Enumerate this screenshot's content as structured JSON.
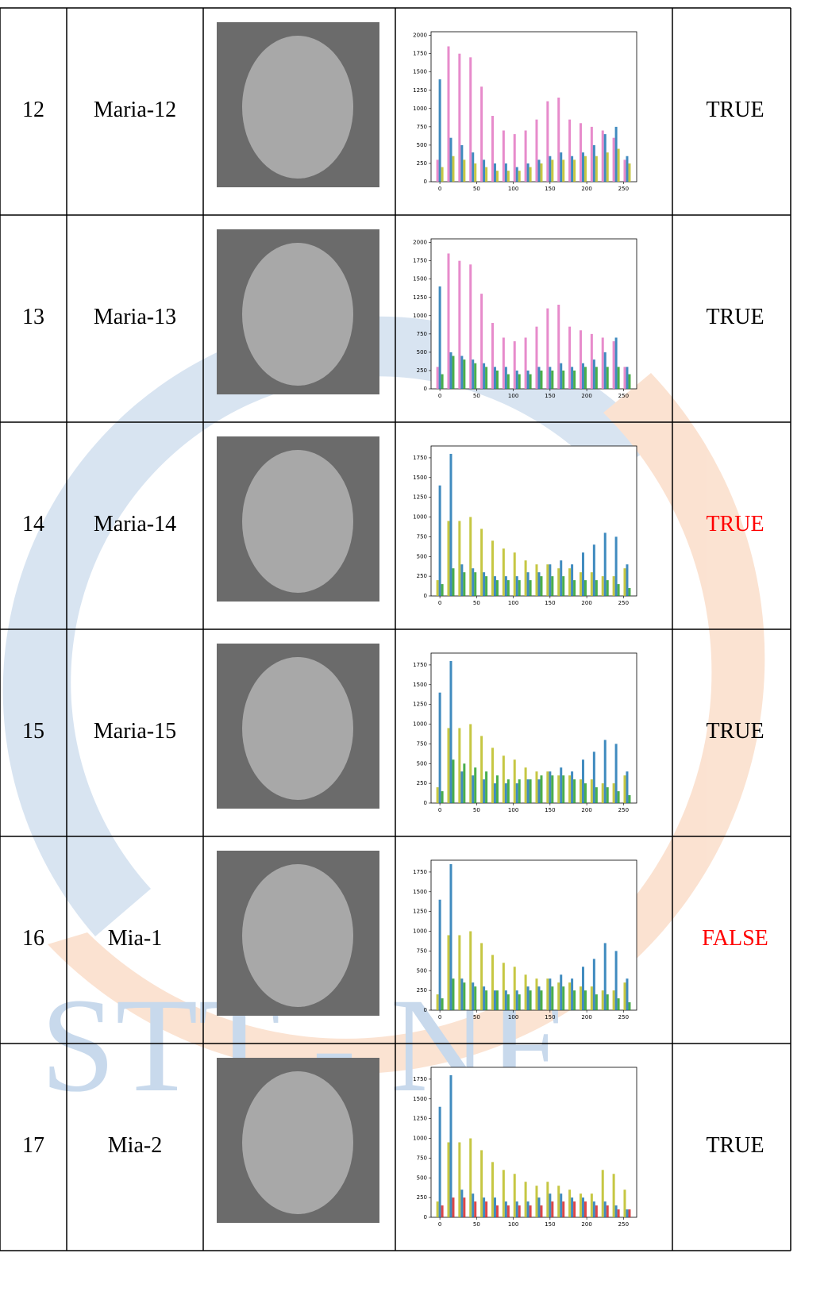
{
  "watermark": "STT - NF",
  "rows": [
    {
      "no": 12,
      "name": "Maria-12",
      "result": "TRUE",
      "result_color": "#000000",
      "histogram": {
        "type": "bar",
        "x": [
          0,
          15,
          30,
          45,
          60,
          75,
          90,
          105,
          120,
          135,
          150,
          165,
          180,
          195,
          210,
          225,
          240,
          255
        ],
        "xlim": [
          -12,
          268
        ],
        "xticks": [
          0,
          50,
          100,
          150,
          200,
          250
        ],
        "ylim": [
          0,
          2050
        ],
        "yticks": [
          0,
          250,
          500,
          750,
          1000,
          1250,
          1500,
          1750,
          2000
        ],
        "series": [
          {
            "color": "#e377c2",
            "values": [
              300,
              1850,
              1750,
              1700,
              1300,
              900,
              700,
              650,
              700,
              850,
              1100,
              1150,
              850,
              800,
              750,
              700,
              600,
              300
            ]
          },
          {
            "color": "#1f77b4",
            "values": [
              1400,
              600,
              500,
              400,
              300,
              250,
              250,
              200,
              250,
              300,
              350,
              400,
              350,
              400,
              500,
              650,
              750,
              350
            ]
          },
          {
            "color": "#bcbd22",
            "values": [
              200,
              350,
              300,
              250,
              200,
              150,
              150,
              150,
              200,
              250,
              300,
              300,
              300,
              350,
              350,
              400,
              450,
              250
            ]
          }
        ]
      }
    },
    {
      "no": 13,
      "name": "Maria-13",
      "result": "TRUE",
      "result_color": "#000000",
      "histogram": {
        "type": "bar",
        "x": [
          0,
          15,
          30,
          45,
          60,
          75,
          90,
          105,
          120,
          135,
          150,
          165,
          180,
          195,
          210,
          225,
          240,
          255
        ],
        "xlim": [
          -12,
          268
        ],
        "xticks": [
          0,
          50,
          100,
          150,
          200,
          250
        ],
        "ylim": [
          0,
          2050
        ],
        "yticks": [
          0,
          250,
          500,
          750,
          1000,
          1250,
          1500,
          1750,
          2000
        ],
        "series": [
          {
            "color": "#e377c2",
            "values": [
              300,
              1850,
              1750,
              1700,
              1300,
              900,
              700,
              650,
              700,
              850,
              1100,
              1150,
              850,
              800,
              750,
              700,
              650,
              300
            ]
          },
          {
            "color": "#1f77b4",
            "values": [
              1400,
              500,
              450,
              400,
              350,
              300,
              300,
              250,
              250,
              300,
              300,
              350,
              300,
              350,
              400,
              500,
              700,
              300
            ]
          },
          {
            "color": "#2ca02c",
            "values": [
              200,
              450,
              400,
              350,
              300,
              250,
              200,
              200,
              200,
              250,
              250,
              250,
              250,
              300,
              300,
              300,
              300,
              200
            ]
          }
        ]
      }
    },
    {
      "no": 14,
      "name": "Maria-14",
      "result": "TRUE",
      "result_color": "#ff0000",
      "histogram": {
        "type": "bar",
        "x": [
          0,
          15,
          30,
          45,
          60,
          75,
          90,
          105,
          120,
          135,
          150,
          165,
          180,
          195,
          210,
          225,
          240,
          255
        ],
        "xlim": [
          -12,
          268
        ],
        "xticks": [
          0,
          50,
          100,
          150,
          200,
          250
        ],
        "ylim": [
          0,
          1900
        ],
        "yticks": [
          0,
          250,
          500,
          750,
          1000,
          1250,
          1500,
          1750
        ],
        "series": [
          {
            "color": "#bcbd22",
            "values": [
              200,
              950,
              950,
              1000,
              850,
              700,
              600,
              550,
              450,
              400,
              400,
              350,
              350,
              300,
              300,
              250,
              250,
              350
            ]
          },
          {
            "color": "#1f77b4",
            "values": [
              1400,
              1800,
              400,
              350,
              300,
              250,
              250,
              250,
              300,
              300,
              400,
              450,
              400,
              550,
              650,
              800,
              750,
              400
            ]
          },
          {
            "color": "#2ca02c",
            "values": [
              150,
              350,
              300,
              300,
              250,
              200,
              200,
              200,
              200,
              250,
              250,
              250,
              200,
              200,
              200,
              200,
              150,
              100
            ]
          }
        ]
      }
    },
    {
      "no": 15,
      "name": "Maria-15",
      "result": "TRUE",
      "result_color": "#000000",
      "histogram": {
        "type": "bar",
        "x": [
          0,
          15,
          30,
          45,
          60,
          75,
          90,
          105,
          120,
          135,
          150,
          165,
          180,
          195,
          210,
          225,
          240,
          255
        ],
        "xlim": [
          -12,
          268
        ],
        "xticks": [
          0,
          50,
          100,
          150,
          200,
          250
        ],
        "ylim": [
          0,
          1900
        ],
        "yticks": [
          0,
          250,
          500,
          750,
          1000,
          1250,
          1500,
          1750
        ],
        "series": [
          {
            "color": "#bcbd22",
            "values": [
              200,
              950,
              950,
              1000,
              850,
              700,
              600,
              550,
              450,
              400,
              400,
              350,
              350,
              300,
              300,
              250,
              250,
              350
            ]
          },
          {
            "color": "#1f77b4",
            "values": [
              1400,
              1800,
              400,
              350,
              300,
              250,
              250,
              250,
              300,
              300,
              400,
              450,
              400,
              550,
              650,
              800,
              750,
              400
            ]
          },
          {
            "color": "#2ca02c",
            "values": [
              150,
              550,
              500,
              450,
              400,
              350,
              300,
              300,
              300,
              350,
              350,
              350,
              300,
              250,
              200,
              200,
              150,
              100
            ]
          }
        ]
      }
    },
    {
      "no": 16,
      "name": "Mia-1",
      "result": "FALSE",
      "result_color": "#ff0000",
      "histogram": {
        "type": "bar",
        "x": [
          0,
          15,
          30,
          45,
          60,
          75,
          90,
          105,
          120,
          135,
          150,
          165,
          180,
          195,
          210,
          225,
          240,
          255
        ],
        "xlim": [
          -12,
          268
        ],
        "xticks": [
          0,
          50,
          100,
          150,
          200,
          250
        ],
        "ylim": [
          0,
          1900
        ],
        "yticks": [
          0,
          250,
          500,
          750,
          1000,
          1250,
          1500,
          1750
        ],
        "series": [
          {
            "color": "#bcbd22",
            "values": [
              200,
              950,
              950,
              1000,
              850,
              700,
              600,
              550,
              450,
              400,
              400,
              350,
              350,
              300,
              300,
              250,
              250,
              350
            ]
          },
          {
            "color": "#1f77b4",
            "values": [
              1400,
              1850,
              400,
              350,
              300,
              250,
              250,
              250,
              300,
              300,
              400,
              450,
              400,
              550,
              650,
              850,
              750,
              400
            ]
          },
          {
            "color": "#2ca02c",
            "values": [
              150,
              400,
              350,
              300,
              250,
              250,
              200,
              200,
              250,
              250,
              300,
              300,
              250,
              250,
              200,
              200,
              150,
              100
            ]
          }
        ]
      }
    },
    {
      "no": 17,
      "name": "Mia-2",
      "result": "TRUE",
      "result_color": "#000000",
      "histogram": {
        "type": "bar",
        "x": [
          0,
          15,
          30,
          45,
          60,
          75,
          90,
          105,
          120,
          135,
          150,
          165,
          180,
          195,
          210,
          225,
          240,
          255
        ],
        "xlim": [
          -12,
          268
        ],
        "xticks": [
          0,
          50,
          100,
          150,
          200,
          250
        ],
        "ylim": [
          0,
          1900
        ],
        "yticks": [
          0,
          250,
          500,
          750,
          1000,
          1250,
          1500,
          1750
        ],
        "series": [
          {
            "color": "#bcbd22",
            "values": [
              200,
              950,
              950,
              1000,
              850,
              700,
              600,
              550,
              450,
              400,
              450,
              400,
              350,
              300,
              300,
              600,
              550,
              350
            ]
          },
          {
            "color": "#1f77b4",
            "values": [
              1400,
              1800,
              350,
              300,
              250,
              250,
              200,
              200,
              200,
              250,
              300,
              300,
              250,
              250,
              200,
              200,
              150,
              100
            ]
          },
          {
            "color": "#d62728",
            "values": [
              150,
              250,
              250,
              200,
              200,
              150,
              150,
              150,
              150,
              150,
              200,
              200,
              200,
              200,
              150,
              150,
              100,
              100
            ]
          }
        ]
      }
    }
  ]
}
